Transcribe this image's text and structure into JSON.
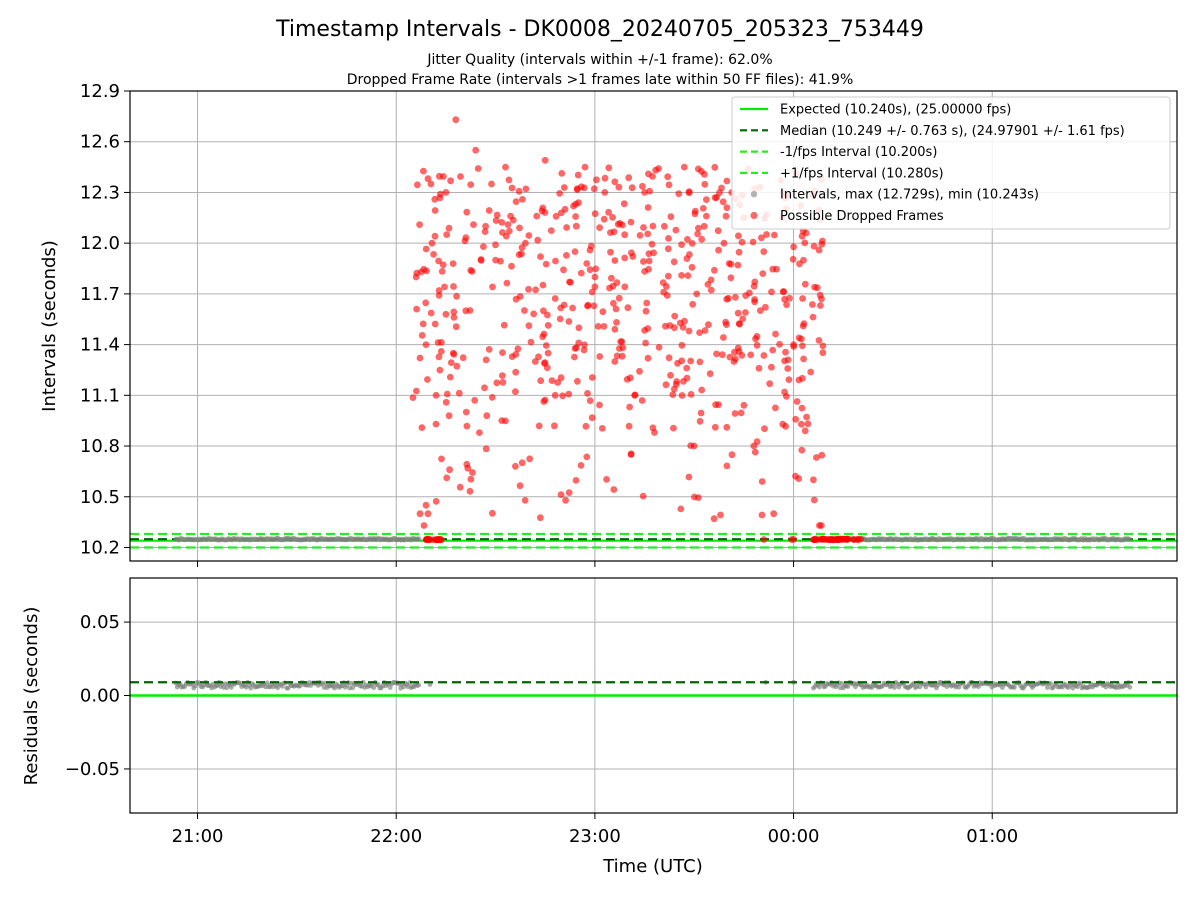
{
  "chart_data": {
    "type": "scatter",
    "title": "Timestamp Intervals - DK0008_20240705_205323_753449",
    "subtitle_1": "Jitter Quality (intervals within +/-1 frame): 62.0%",
    "subtitle_2": "Dropped Frame Rate (intervals >1 frames late within 50 FF files): 41.9%",
    "xlabel": "Time (UTC)",
    "x_ticks": [
      "21:00",
      "22:00",
      "23:00",
      "00:00",
      "01:00"
    ],
    "x_tick_values_hours": [
      21,
      22,
      23,
      24,
      25
    ],
    "x_range_hours": [
      20.66,
      25.93
    ],
    "grid": true,
    "legend_position": "upper-right",
    "colors": {
      "expected": "#00ee00",
      "median": "#006400",
      "fps_interval": "#22ee22",
      "intervals": "#808080",
      "dropped": "#ff0000"
    },
    "top_panel": {
      "ylabel": "Intervals (seconds)",
      "ylim": [
        10.12,
        12.9
      ],
      "y_ticks": [
        "10.2",
        "10.5",
        "10.8",
        "11.1",
        "11.4",
        "11.7",
        "12.0",
        "12.3",
        "12.6",
        "12.9"
      ],
      "y_tick_values": [
        10.2,
        10.5,
        10.8,
        11.1,
        11.4,
        11.7,
        12.0,
        12.3,
        12.6,
        12.9
      ],
      "expected_interval": 10.24,
      "median_interval": 10.249,
      "minus_fps_interval": 10.2,
      "plus_fps_interval": 10.28,
      "legend": [
        "Expected (10.240s), (25.00000 fps)",
        "Median (10.249 +/- 0.763 s), (24.97901 +/- 1.61 fps)",
        "-1/fps Interval (10.200s)",
        "+1/fps Interval (10.280s)",
        "Intervals, max (12.729s), min (10.243s)",
        "Possible Dropped Frames"
      ],
      "normal_interval_segments": [
        {
          "start": 20.89,
          "end": 22.12,
          "value": 10.249
        },
        {
          "start": 24.17,
          "end": 25.7,
          "value": 10.249
        }
      ],
      "dropped_frames_approx": {
        "time_range": [
          22.08,
          24.15
        ],
        "value_range": [
          10.243,
          12.729
        ],
        "points_t": [
          22.1,
          22.12,
          22.15,
          22.18,
          22.2,
          22.25,
          22.3,
          22.35,
          22.4,
          22.45,
          22.5,
          22.55,
          22.6,
          22.65,
          22.7,
          22.75,
          22.8,
          22.85,
          22.9,
          22.95,
          23.0,
          23.05,
          23.1,
          23.15,
          23.2,
          23.25,
          23.3,
          23.35,
          23.4,
          23.45,
          23.5,
          23.55,
          23.6,
          23.65,
          23.7,
          23.75,
          23.8,
          23.85,
          23.9,
          23.95,
          24.0,
          24.05,
          24.1,
          24.13
        ],
        "points_v": [
          11.8,
          10.4,
          11.4,
          12.0,
          10.93,
          12.3,
          12.73,
          11.6,
          12.55,
          12.1,
          11.9,
          12.45,
          10.68,
          12.0,
          11.3,
          12.49,
          11.1,
          12.2,
          11.95,
          12.45,
          11.8,
          12.3,
          11.3,
          12.05,
          11.1,
          12.3,
          10.88,
          12.1,
          11.5,
          12.45,
          10.8,
          12.1,
          10.37,
          12.0,
          11.3,
          12.15,
          10.8,
          11.95,
          10.4,
          12.3,
          11.4,
          11.9,
          10.6,
          10.33
        ]
      }
    },
    "bottom_panel": {
      "ylabel": "Residuals (seconds)",
      "ylim": [
        -0.08,
        0.08
      ],
      "y_ticks": [
        "−0.05",
        "0.00",
        "0.05"
      ],
      "y_tick_values": [
        -0.05,
        0.0,
        0.05
      ],
      "expected_residual": 0.0,
      "median_residual": 0.009,
      "residual_segments": [
        {
          "start": 20.89,
          "end": 22.12,
          "value": 0.007
        },
        {
          "start": 24.1,
          "end": 25.7,
          "value": 0.007
        }
      ],
      "isolated_residuals": [
        {
          "t": 22.17,
          "v": 0.0075
        },
        {
          "t": 23.86,
          "v": 0.009
        },
        {
          "t": 24.0,
          "v": 0.009
        }
      ]
    }
  }
}
